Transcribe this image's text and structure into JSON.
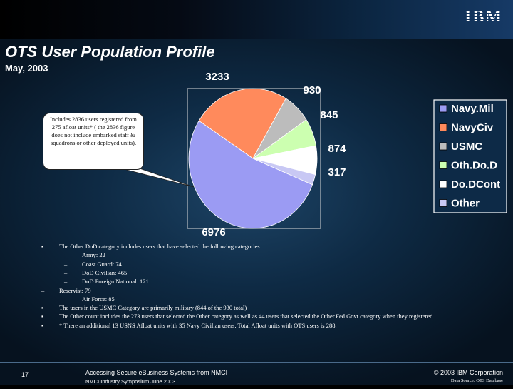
{
  "slide": {
    "logo": "IBM",
    "title": "OTS User Population Profile",
    "subtitle": "May, 2003",
    "callout": "Includes 2836 users registered from 275 afloat units* ( the 2836 figure does not include embarked staff & squadrons or other deployed units)."
  },
  "chart_data": {
    "type": "pie",
    "title": "",
    "categories": [
      "Navy.Mil",
      "NavyCiv",
      "USMC",
      "Oth.Do.D",
      "Do.DCont",
      "Other"
    ],
    "values": [
      6976,
      3233,
      930,
      845,
      874,
      317
    ],
    "colors": [
      "#9b9bf3",
      "#ff8a5c",
      "#bcbcbc",
      "#ccffb0",
      "#ffffff",
      "#c8c8f4"
    ],
    "data_labels": [
      "6976",
      "3233",
      "930",
      "845",
      "874",
      "317"
    ],
    "legend": {
      "placement": "right"
    }
  },
  "notes": [
    {
      "marker": "▪",
      "level": 0,
      "text": "The Other DoD category includes users that have selected the following categories:"
    },
    {
      "marker": "–",
      "level": 1,
      "text": "Army: 22"
    },
    {
      "marker": "–",
      "level": 1,
      "text": "Coast Guard: 74"
    },
    {
      "marker": "–",
      "level": 1,
      "text": "DoD Civilian: 465"
    },
    {
      "marker": "–",
      "level": 1,
      "text": "DoD Foreign National: 121"
    },
    {
      "marker": "–",
      "level": 0,
      "text": "Reservist: 79"
    },
    {
      "marker": "–",
      "level": 1,
      "text": "Air Force: 85"
    },
    {
      "marker": "▪",
      "level": 0,
      "text": "The users in the USMC Category are primarily military (844 of the 930 total)"
    },
    {
      "marker": "▪",
      "level": 0,
      "text": "The Other count includes the 273 users that selected the Other category as well as 44 users that selected the Other.Fed.Govt category when they registered."
    },
    {
      "marker": "▪",
      "level": 0,
      "text": "* There an additional 13 USNS Afloat units with 35 Navy Civilian users. Total Afloat units with OTS users is 288."
    }
  ],
  "footer": {
    "page_number": "17",
    "line1": "Accessing Secure eBusiness Systems from NMCI",
    "line2": "NMCI Industry Symposium June 2003",
    "copyright": "© 2003 IBM Corporation",
    "data_source": "Data Source: OTS Database"
  }
}
